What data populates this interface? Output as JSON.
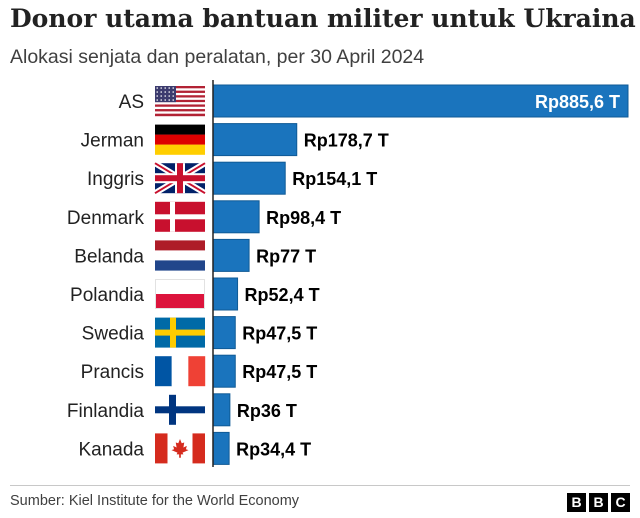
{
  "header": {
    "title": "Donor utama bantuan militer untuk Ukraina",
    "subtitle": "Alokasi senjata dan peralatan, per 30 April 2024"
  },
  "footer": {
    "source": "Sumber: Kiel Institute for the World Economy",
    "logo_letters": [
      "B",
      "B",
      "C"
    ]
  },
  "colors": {
    "bar": "#1a74bd",
    "bar_border": "#0f5a96",
    "label_inside": "#ffffff",
    "label_outside": "#000000"
  },
  "chart_data": {
    "type": "bar",
    "orientation": "horizontal",
    "title": "Donor utama bantuan militer untuk Ukraina",
    "subtitle": "Alokasi senjata dan peralatan, per 30 April 2024",
    "categories": [
      "AS",
      "Jerman",
      "Inggris",
      "Denmark",
      "Belanda",
      "Polandia",
      "Swedia",
      "Prancis",
      "Finlandia",
      "Kanada"
    ],
    "values": [
      885.6,
      178.7,
      154.1,
      98.4,
      77,
      52.4,
      47.5,
      47.5,
      36,
      34.4
    ],
    "value_labels": [
      "Rp885,6 T",
      "Rp178,7 T",
      "Rp154,1 T",
      "Rp98,4 T",
      "Rp77 T",
      "Rp52,4 T",
      "Rp47,5 T",
      "Rp47,5 T",
      "Rp36 T",
      "Rp34,4 T"
    ],
    "flags": [
      "us-flag-icon",
      "germany-flag-icon",
      "uk-flag-icon",
      "denmark-flag-icon",
      "netherlands-flag-icon",
      "poland-flag-icon",
      "sweden-flag-icon",
      "france-flag-icon",
      "finland-flag-icon",
      "canada-flag-icon"
    ],
    "xlim": [
      0,
      885.6
    ],
    "grid": false,
    "legend": "none"
  }
}
